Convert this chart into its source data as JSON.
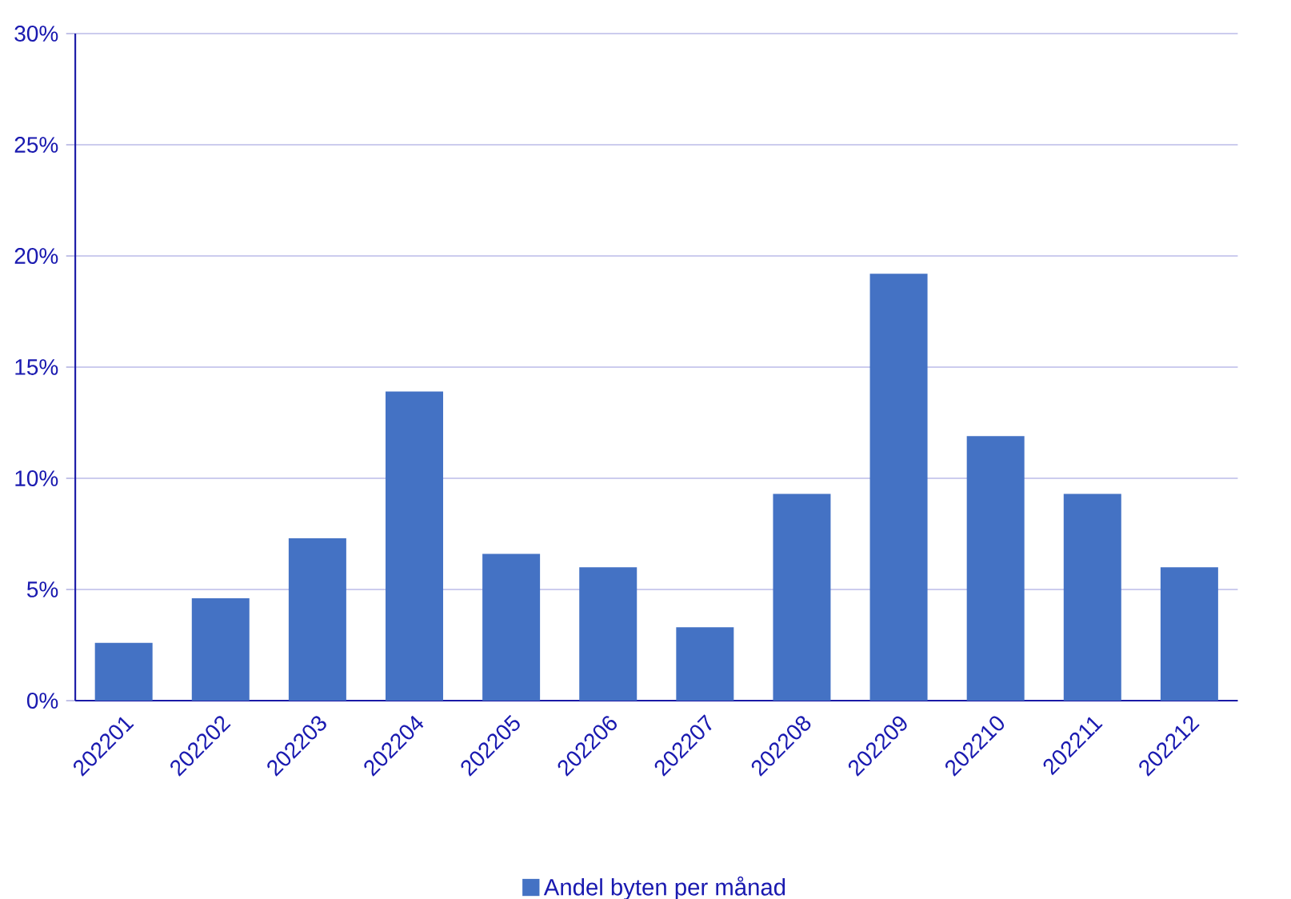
{
  "chart_data": {
    "type": "bar",
    "categories": [
      "202201",
      "202202",
      "202203",
      "202204",
      "202205",
      "202206",
      "202207",
      "202208",
      "202209",
      "202210",
      "202211",
      "202212"
    ],
    "series": [
      {
        "name": "Andel byten per månad",
        "color": "#4472c4",
        "values": [
          2.6,
          4.6,
          7.3,
          13.9,
          6.6,
          6.0,
          3.3,
          9.3,
          19.2,
          11.9,
          9.3,
          6.0
        ]
      }
    ],
    "ylim": [
      0,
      30
    ],
    "yticks": [
      {
        "value": 0,
        "label": "0%"
      },
      {
        "value": 5,
        "label": "5%"
      },
      {
        "value": 10,
        "label": "10%"
      },
      {
        "value": 15,
        "label": "15%"
      },
      {
        "value": 20,
        "label": "20%"
      },
      {
        "value": 25,
        "label": "25%"
      },
      {
        "value": 30,
        "label": "30%"
      }
    ],
    "grid": "y",
    "legend": "bottom"
  }
}
